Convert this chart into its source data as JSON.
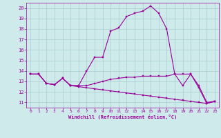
{
  "xlabel": "Windchill (Refroidissement éolien,°C)",
  "bg_color": "#ceeaea",
  "line_color": "#990099",
  "grid_color": "#aacccc",
  "xlim": [
    -0.5,
    23.5
  ],
  "ylim": [
    10.5,
    20.5
  ],
  "xticks": [
    0,
    1,
    2,
    3,
    4,
    5,
    6,
    7,
    8,
    9,
    10,
    11,
    12,
    13,
    14,
    15,
    16,
    17,
    18,
    19,
    20,
    21,
    22,
    23
  ],
  "yticks": [
    11,
    12,
    13,
    14,
    15,
    16,
    17,
    18,
    19,
    20
  ],
  "line1_x": [
    0,
    1,
    2,
    3,
    4,
    5,
    6,
    7,
    8,
    9,
    10,
    11,
    12,
    13,
    14,
    15,
    16,
    17,
    18,
    19,
    20,
    21,
    22,
    23
  ],
  "line1_y": [
    13.7,
    13.7,
    12.8,
    12.7,
    13.3,
    12.6,
    12.6,
    14.0,
    15.3,
    15.3,
    17.8,
    18.1,
    19.2,
    19.5,
    19.7,
    20.2,
    19.5,
    18.0,
    13.7,
    12.6,
    13.7,
    12.4,
    10.9,
    11.1
  ],
  "line2_x": [
    0,
    1,
    2,
    3,
    4,
    5,
    6,
    7,
    8,
    9,
    10,
    11,
    12,
    13,
    14,
    15,
    16,
    17,
    18,
    19,
    20,
    21,
    22,
    23
  ],
  "line2_y": [
    13.7,
    13.7,
    12.8,
    12.7,
    13.3,
    12.6,
    12.6,
    12.6,
    12.8,
    13.0,
    13.2,
    13.3,
    13.4,
    13.4,
    13.5,
    13.5,
    13.5,
    13.5,
    13.7,
    13.7,
    13.7,
    12.6,
    11.0,
    11.1
  ],
  "line3_x": [
    0,
    1,
    2,
    3,
    4,
    5,
    6,
    7,
    8,
    9,
    10,
    11,
    12,
    13,
    14,
    15,
    16,
    17,
    18,
    19,
    20,
    21,
    22,
    23
  ],
  "line3_y": [
    13.7,
    13.7,
    12.8,
    12.7,
    13.3,
    12.6,
    12.5,
    12.4,
    12.3,
    12.2,
    12.1,
    12.0,
    11.9,
    11.8,
    11.7,
    11.6,
    11.5,
    11.4,
    11.3,
    11.2,
    11.1,
    11.0,
    10.9,
    11.1
  ]
}
